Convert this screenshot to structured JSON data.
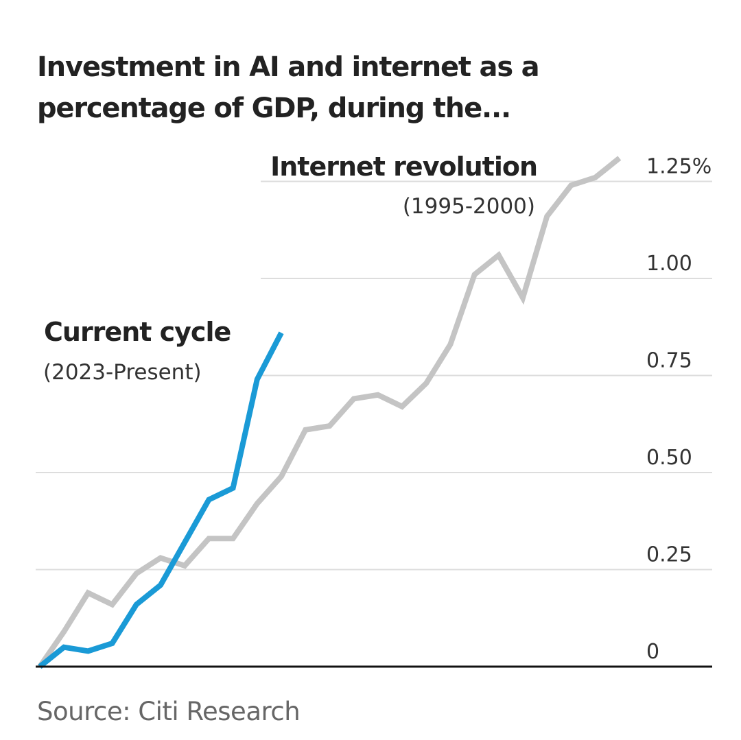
{
  "chart_data": {
    "type": "line",
    "title": "Investment in AI and internet as a percentage of GDP, during the...",
    "source": "Source: Citi Research",
    "xlabel": "",
    "ylabel": "",
    "ylim": [
      0,
      1.25
    ],
    "y_ticks": [
      {
        "value": 0,
        "label": "0"
      },
      {
        "value": 0.25,
        "label": "0.25"
      },
      {
        "value": 0.5,
        "label": "0.50"
      },
      {
        "value": 0.75,
        "label": "0.75"
      },
      {
        "value": 1.0,
        "label": "1.00"
      },
      {
        "value": 1.25,
        "label": "1.25%"
      }
    ],
    "grid": true,
    "series": [
      {
        "name": "Internet revolution",
        "period": "(1995-2000)",
        "color": "#c4c4c4",
        "values": [
          0,
          0.09,
          0.19,
          0.16,
          0.24,
          0.28,
          0.26,
          0.33,
          0.33,
          0.42,
          0.49,
          0.61,
          0.62,
          0.69,
          0.7,
          0.67,
          0.73,
          0.83,
          1.01,
          1.06,
          0.95,
          1.16,
          1.24,
          1.26,
          1.31
        ]
      },
      {
        "name": "Current cycle",
        "period": "(2023-Present)",
        "color": "#1a9ad6",
        "values": [
          0,
          0.05,
          0.04,
          0.06,
          0.16,
          0.21,
          0.32,
          0.43,
          0.46,
          0.74,
          0.86
        ]
      }
    ]
  }
}
